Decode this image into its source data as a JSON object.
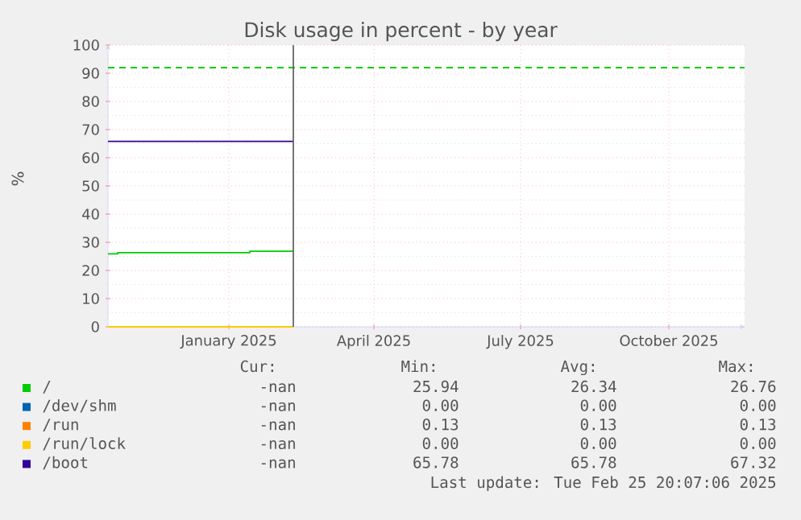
{
  "chart_data": {
    "type": "line",
    "title": "Disk usage in percent - by year",
    "ylabel": "%",
    "xlim": [
      "2024-11-02",
      "2025-12-02"
    ],
    "xticks": [
      {
        "value": "2025-01-16",
        "label": "January 2025"
      },
      {
        "value": "2025-04-16",
        "label": "April 2025"
      },
      {
        "value": "2025-07-16",
        "label": "July 2025"
      },
      {
        "value": "2025-10-16",
        "label": "October 2025"
      }
    ],
    "ylim": [
      0,
      100
    ],
    "yticks": [
      0,
      10,
      20,
      30,
      40,
      50,
      60,
      70,
      80,
      90,
      100
    ],
    "grid": true,
    "legend": "bottom",
    "series": [
      {
        "name": "/",
        "color": "#00cc00",
        "x": [
          "2024-11-02",
          "2024-11-08",
          "2024-11-08",
          "2025-01-29",
          "2025-01-29",
          "2025-02-25"
        ],
        "values": [
          25.9,
          25.9,
          26.3,
          26.3,
          26.8,
          26.8
        ]
      },
      {
        "name": "/dev/shm",
        "color": "#0066b3",
        "values": [
          null,
          null
        ]
      },
      {
        "name": "/run",
        "color": "#ff8000",
        "values": [
          null,
          null
        ]
      },
      {
        "name": "/run/lock",
        "color": "#ffcc00",
        "x": [
          "2024-11-02",
          "2025-02-25"
        ],
        "values": [
          0,
          0
        ]
      },
      {
        "name": "/boot",
        "color": "#330099",
        "x": [
          "2024-11-02",
          "2025-02-25"
        ],
        "values": [
          65.8,
          65.8
        ]
      }
    ],
    "ref_lines": [
      {
        "axis": "y",
        "value": 92,
        "color": "#00cc00",
        "line_style": "dashed"
      },
      {
        "axis": "x",
        "value": "2025-02-25",
        "color": "#666666",
        "line_style": "solid"
      }
    ],
    "annotations": [
      "Cur:",
      "Min:",
      "Avg:",
      "Max:",
      "-nan",
      "25.94",
      "26.34",
      "26.76",
      "-nan",
      "0.00",
      "0.00",
      "0.00",
      "-nan",
      "0.13",
      "0.13",
      "0.13",
      "-nan",
      "0.00",
      "0.00",
      "0.00",
      "-nan",
      "65.78",
      "65.78",
      "67.32",
      "Last update: Tue Feb 25 20:07:06 2025"
    ]
  }
}
